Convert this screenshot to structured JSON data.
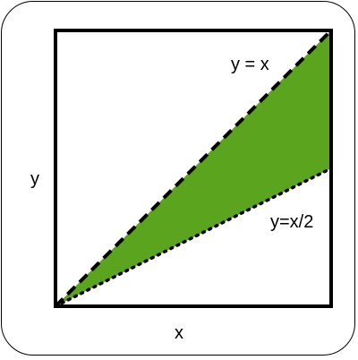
{
  "axes": {
    "x_label": "x",
    "y_label": "y"
  },
  "curves": {
    "upper_label": "y = x",
    "lower_label": "y=x/2",
    "upper_slope": 1,
    "lower_slope": 0.5
  },
  "colors": {
    "region_fill": "#5aa41e",
    "stroke": "#000000",
    "background": "#ffffff"
  }
}
